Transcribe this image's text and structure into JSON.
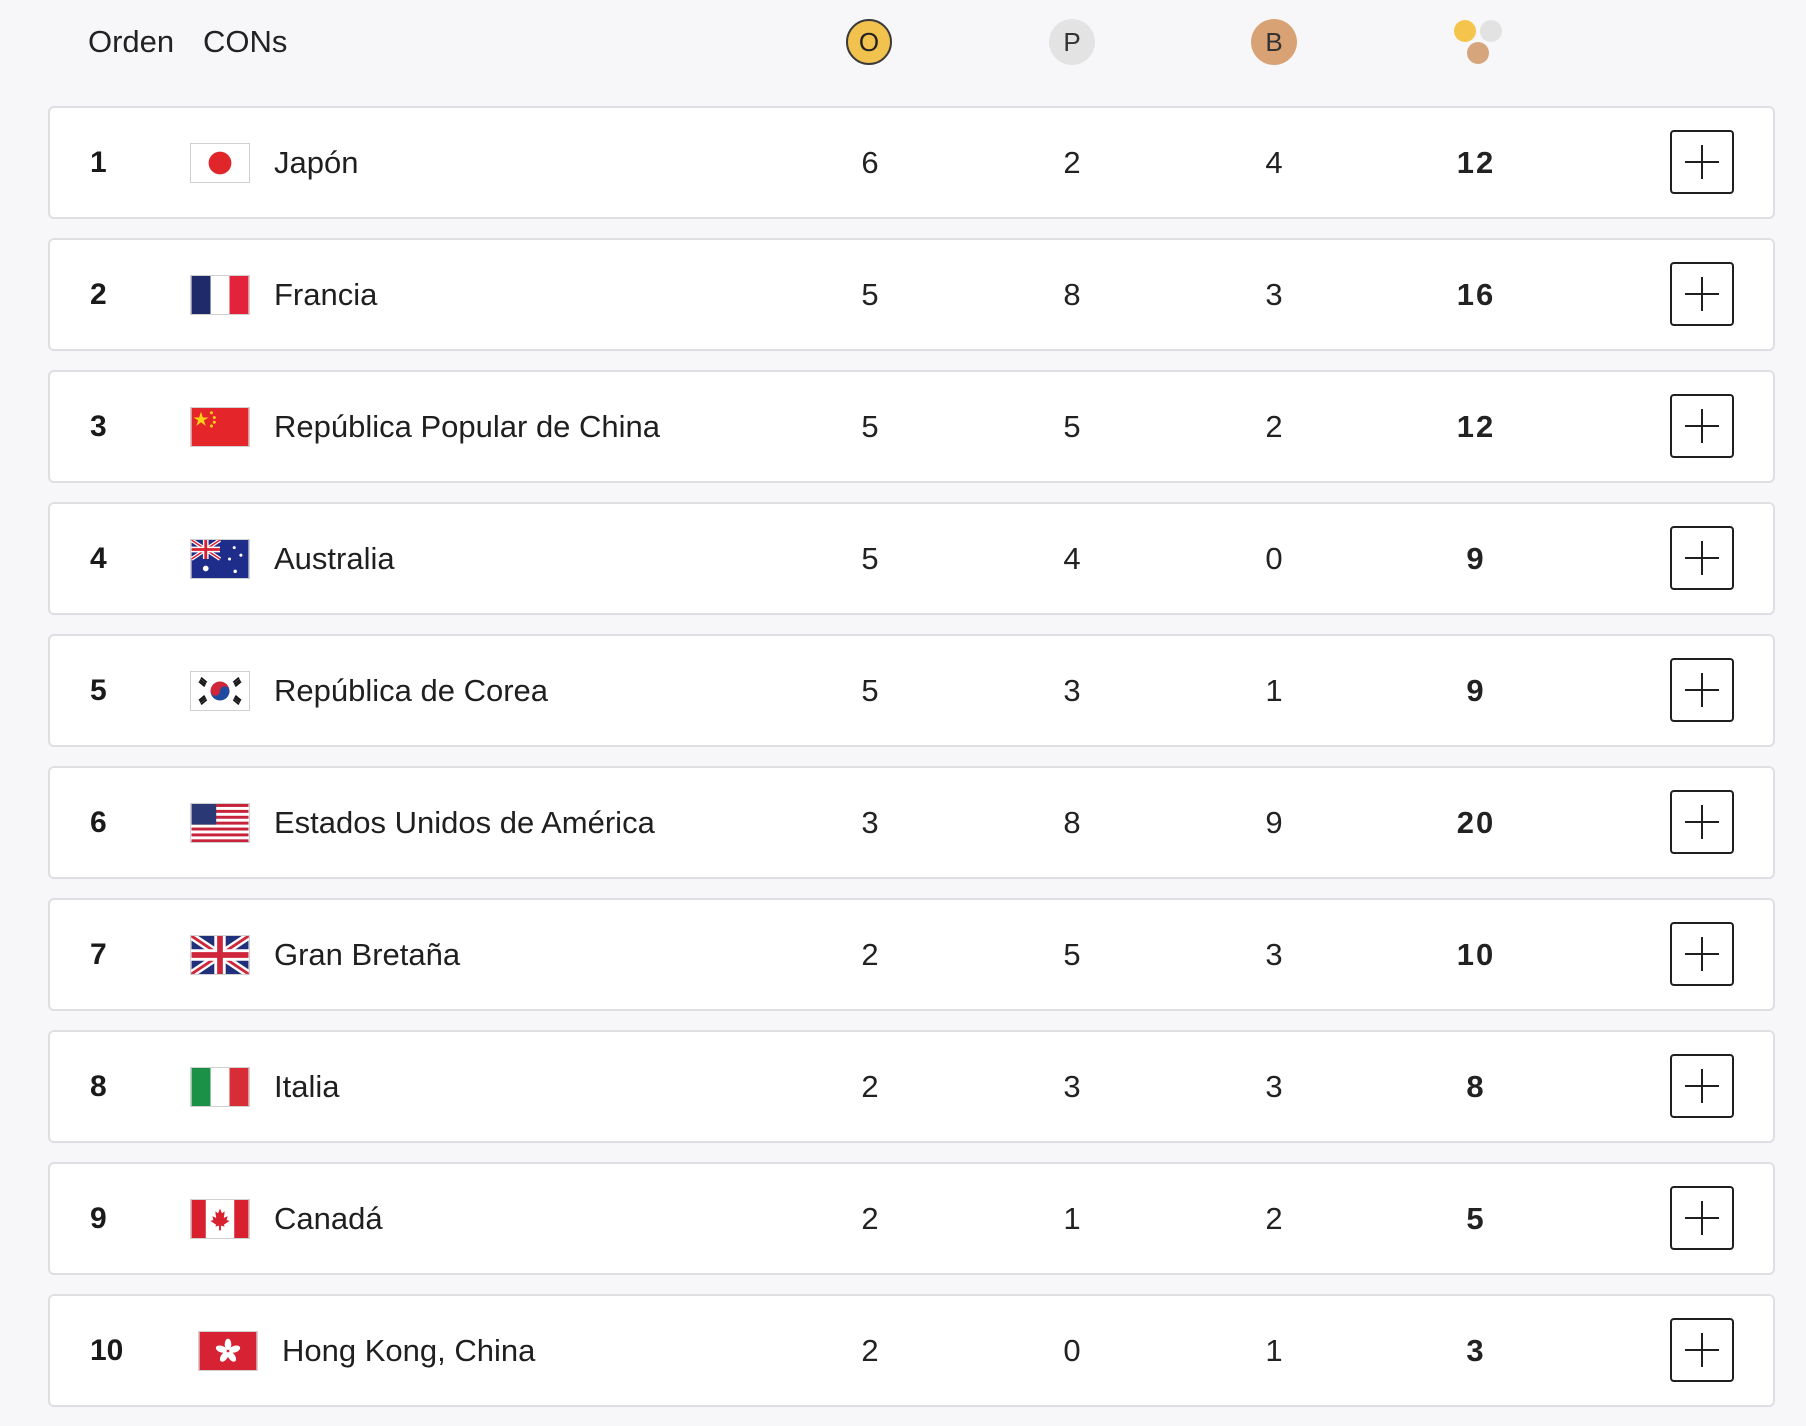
{
  "header": {
    "rank_label": "Orden",
    "country_label": "CONs",
    "gold_label": "O",
    "silver_label": "P",
    "bronze_label": "B",
    "total_icon": "medals-total-icon"
  },
  "colors": {
    "gold": "#f2c24e",
    "silver": "#e3e3e3",
    "bronze": "#d9a274"
  },
  "rows": [
    {
      "rank": "1",
      "country": "Japón",
      "flag": "flag-japan-icon",
      "gold": "6",
      "silver": "2",
      "bronze": "4",
      "total": "12"
    },
    {
      "rank": "2",
      "country": "Francia",
      "flag": "flag-france-icon",
      "gold": "5",
      "silver": "8",
      "bronze": "3",
      "total": "16"
    },
    {
      "rank": "3",
      "country": "República Popular de China",
      "flag": "flag-china-icon",
      "gold": "5",
      "silver": "5",
      "bronze": "2",
      "total": "12"
    },
    {
      "rank": "4",
      "country": "Australia",
      "flag": "flag-australia-icon",
      "gold": "5",
      "silver": "4",
      "bronze": "0",
      "total": "9"
    },
    {
      "rank": "5",
      "country": "República de Corea",
      "flag": "flag-korea-icon",
      "gold": "5",
      "silver": "3",
      "bronze": "1",
      "total": "9"
    },
    {
      "rank": "6",
      "country": "Estados Unidos de América",
      "flag": "flag-usa-icon",
      "gold": "3",
      "silver": "8",
      "bronze": "9",
      "total": "20"
    },
    {
      "rank": "7",
      "country": "Gran Bretaña",
      "flag": "flag-great-britain-icon",
      "gold": "2",
      "silver": "5",
      "bronze": "3",
      "total": "10"
    },
    {
      "rank": "8",
      "country": "Italia",
      "flag": "flag-italy-icon",
      "gold": "2",
      "silver": "3",
      "bronze": "3",
      "total": "8"
    },
    {
      "rank": "9",
      "country": "Canadá",
      "flag": "flag-canada-icon",
      "gold": "2",
      "silver": "1",
      "bronze": "2",
      "total": "5"
    },
    {
      "rank": "10",
      "country": "Hong Kong, China",
      "flag": "flag-hong-kong-icon",
      "gold": "2",
      "silver": "0",
      "bronze": "1",
      "total": "3"
    }
  ],
  "expand_icon": "plus-icon"
}
